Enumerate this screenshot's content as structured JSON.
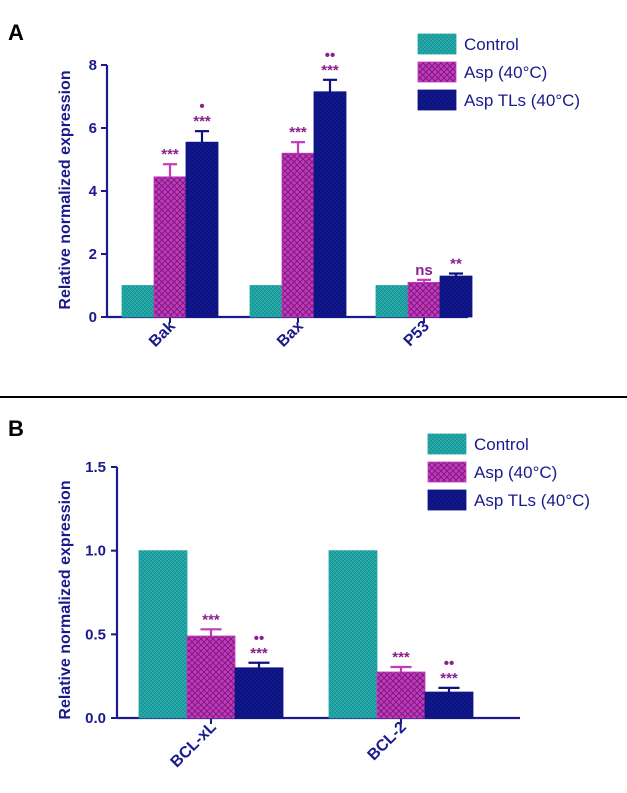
{
  "colors": {
    "axis": "#1a1a8c",
    "control": "#1fa3a3",
    "asp": "#c23bbd",
    "asp_tls": "#0c1380",
    "significance": "#8b1f8c",
    "divider": "#000000"
  },
  "chart_data": [
    {
      "panel": "A",
      "type": "bar",
      "ylabel": "Relative normalized expression",
      "ylim": [
        0,
        8
      ],
      "yticks": [
        "0",
        "2",
        "4",
        "6",
        "8"
      ],
      "ytick_values": [
        0,
        2,
        4,
        6,
        8
      ],
      "categories": [
        "Bak",
        "Bax",
        "P53"
      ],
      "legend": "top-right",
      "series": [
        {
          "name": "Control",
          "values": [
            1.0,
            1.0,
            1.0
          ],
          "errors": [
            0,
            0,
            0
          ],
          "sig": [
            "",
            "",
            ""
          ],
          "dots": [
            "",
            "",
            ""
          ]
        },
        {
          "name": "Asp (40°C)",
          "values": [
            4.45,
            5.2,
            1.1
          ],
          "errors": [
            0.4,
            0.35,
            0.08
          ],
          "sig": [
            "***",
            "***",
            "ns"
          ],
          "dots": [
            "",
            "",
            ""
          ]
        },
        {
          "name": "Asp TLs (40°C)",
          "values": [
            5.55,
            7.15,
            1.3
          ],
          "errors": [
            0.35,
            0.38,
            0.08
          ],
          "sig": [
            "***",
            "***",
            "**"
          ],
          "dots": [
            "•",
            "••",
            ""
          ]
        }
      ]
    },
    {
      "panel": "B",
      "type": "bar",
      "ylabel": "Relative normalized expression",
      "ylim": [
        0,
        1.5
      ],
      "yticks": [
        "0.0",
        "0.5",
        "1.0",
        "1.5"
      ],
      "ytick_values": [
        0,
        0.5,
        1.0,
        1.5
      ],
      "categories": [
        "BCL-xL",
        "BCL-2"
      ],
      "legend": "top-right",
      "series": [
        {
          "name": "Control",
          "values": [
            1.0,
            1.0
          ],
          "errors": [
            0,
            0
          ],
          "sig": [
            "",
            ""
          ],
          "dots": [
            "",
            ""
          ]
        },
        {
          "name": "Asp (40°C)",
          "values": [
            0.49,
            0.275
          ],
          "errors": [
            0.04,
            0.03
          ],
          "sig": [
            "***",
            "***"
          ],
          "dots": [
            "",
            ""
          ]
        },
        {
          "name": "Asp TLs (40°C)",
          "values": [
            0.3,
            0.155
          ],
          "errors": [
            0.03,
            0.025
          ],
          "sig": [
            "***",
            "***"
          ],
          "dots": [
            "••",
            "••"
          ]
        }
      ]
    }
  ]
}
